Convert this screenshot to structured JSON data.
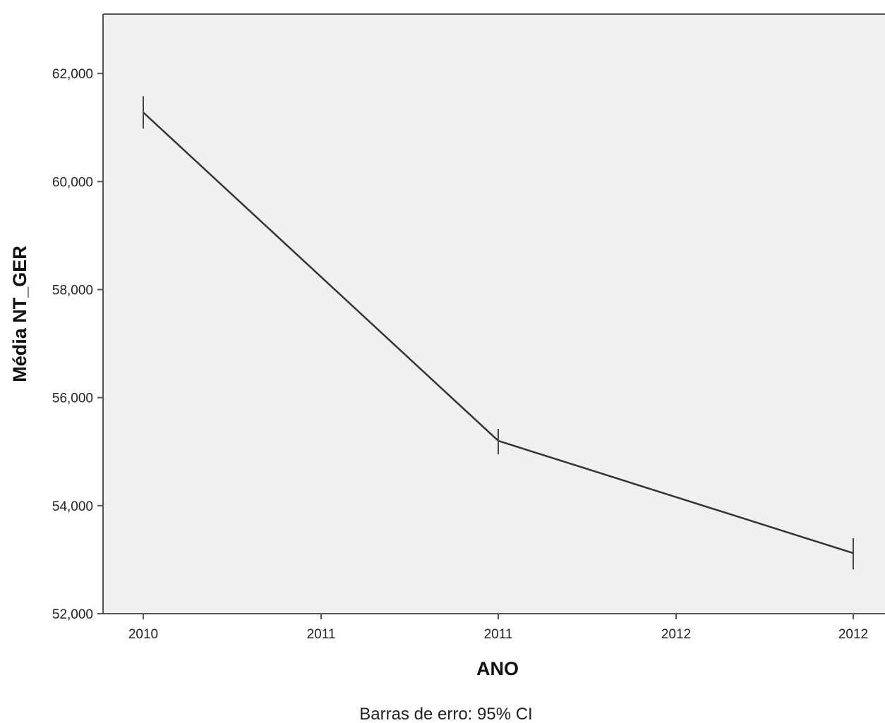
{
  "chart_data": {
    "type": "line",
    "title": "",
    "xlabel": "ANO",
    "ylabel": "Média NT_GER",
    "footnote": "Barras de erro: 95% CI",
    "x_tick_labels": [
      "2010",
      "2011",
      "2011",
      "2012",
      "2012"
    ],
    "y_tick_labels": [
      "52,000",
      "54,000",
      "56,000",
      "58,000",
      "60,000",
      "62,000"
    ],
    "y_ticks": [
      52000,
      54000,
      56000,
      58000,
      60000,
      62000
    ],
    "ylim": [
      52000,
      63100
    ],
    "grid": false,
    "legend": "none",
    "colors": {
      "plot_background": "#f0f0f0",
      "line": "#333333",
      "axis": "#555555"
    },
    "points": [
      {
        "x": "2010",
        "y": 61280,
        "ci_low": 60980,
        "ci_high": 61580
      },
      {
        "x": "2011",
        "y": 55200,
        "ci_low": 54950,
        "ci_high": 55420
      },
      {
        "x": "2012",
        "y": 53120,
        "ci_low": 52820,
        "ci_high": 53400
      }
    ],
    "point_tick_index": [
      0,
      2,
      4
    ]
  }
}
